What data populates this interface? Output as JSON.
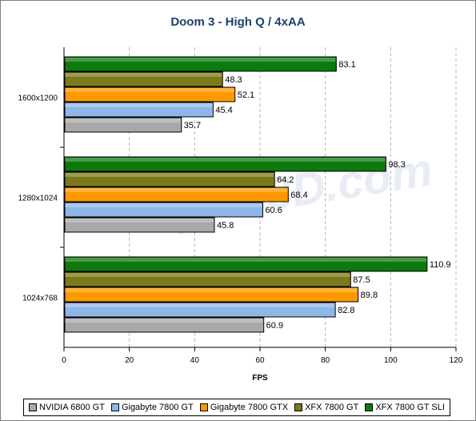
{
  "chart_data": {
    "type": "bar",
    "orientation": "horizontal",
    "title": "Doom 3 - High Q / 4xAA",
    "xlabel": "FPS",
    "ylabel": "",
    "xlim": [
      0,
      120
    ],
    "x_ticks": [
      0,
      20,
      40,
      60,
      80,
      100,
      120
    ],
    "grid": "vertical dashed",
    "legend_position": "bottom",
    "categories": [
      "1600x1200",
      "1280x1024",
      "1024x768"
    ],
    "series": [
      {
        "name": "NVIDIA 6800 GT",
        "color": "#a8a8a8",
        "values": [
          35.7,
          45.8,
          60.9
        ]
      },
      {
        "name": "Gigabyte 7800 GT",
        "color": "#8fb6e8",
        "values": [
          45.4,
          60.6,
          82.8
        ]
      },
      {
        "name": "Gigabyte 7800 GTX",
        "color": "#ff9900",
        "values": [
          52.1,
          68.4,
          89.8
        ]
      },
      {
        "name": "XFX 7800 GT",
        "color": "#7a7a1a",
        "values": [
          48.3,
          64.2,
          87.5
        ]
      },
      {
        "name": "XFX 7800 GT SLI",
        "color": "#0d7a0d",
        "values": [
          83.1,
          98.3,
          110.9
        ]
      }
    ],
    "watermark": "Bjorn3D.com"
  }
}
